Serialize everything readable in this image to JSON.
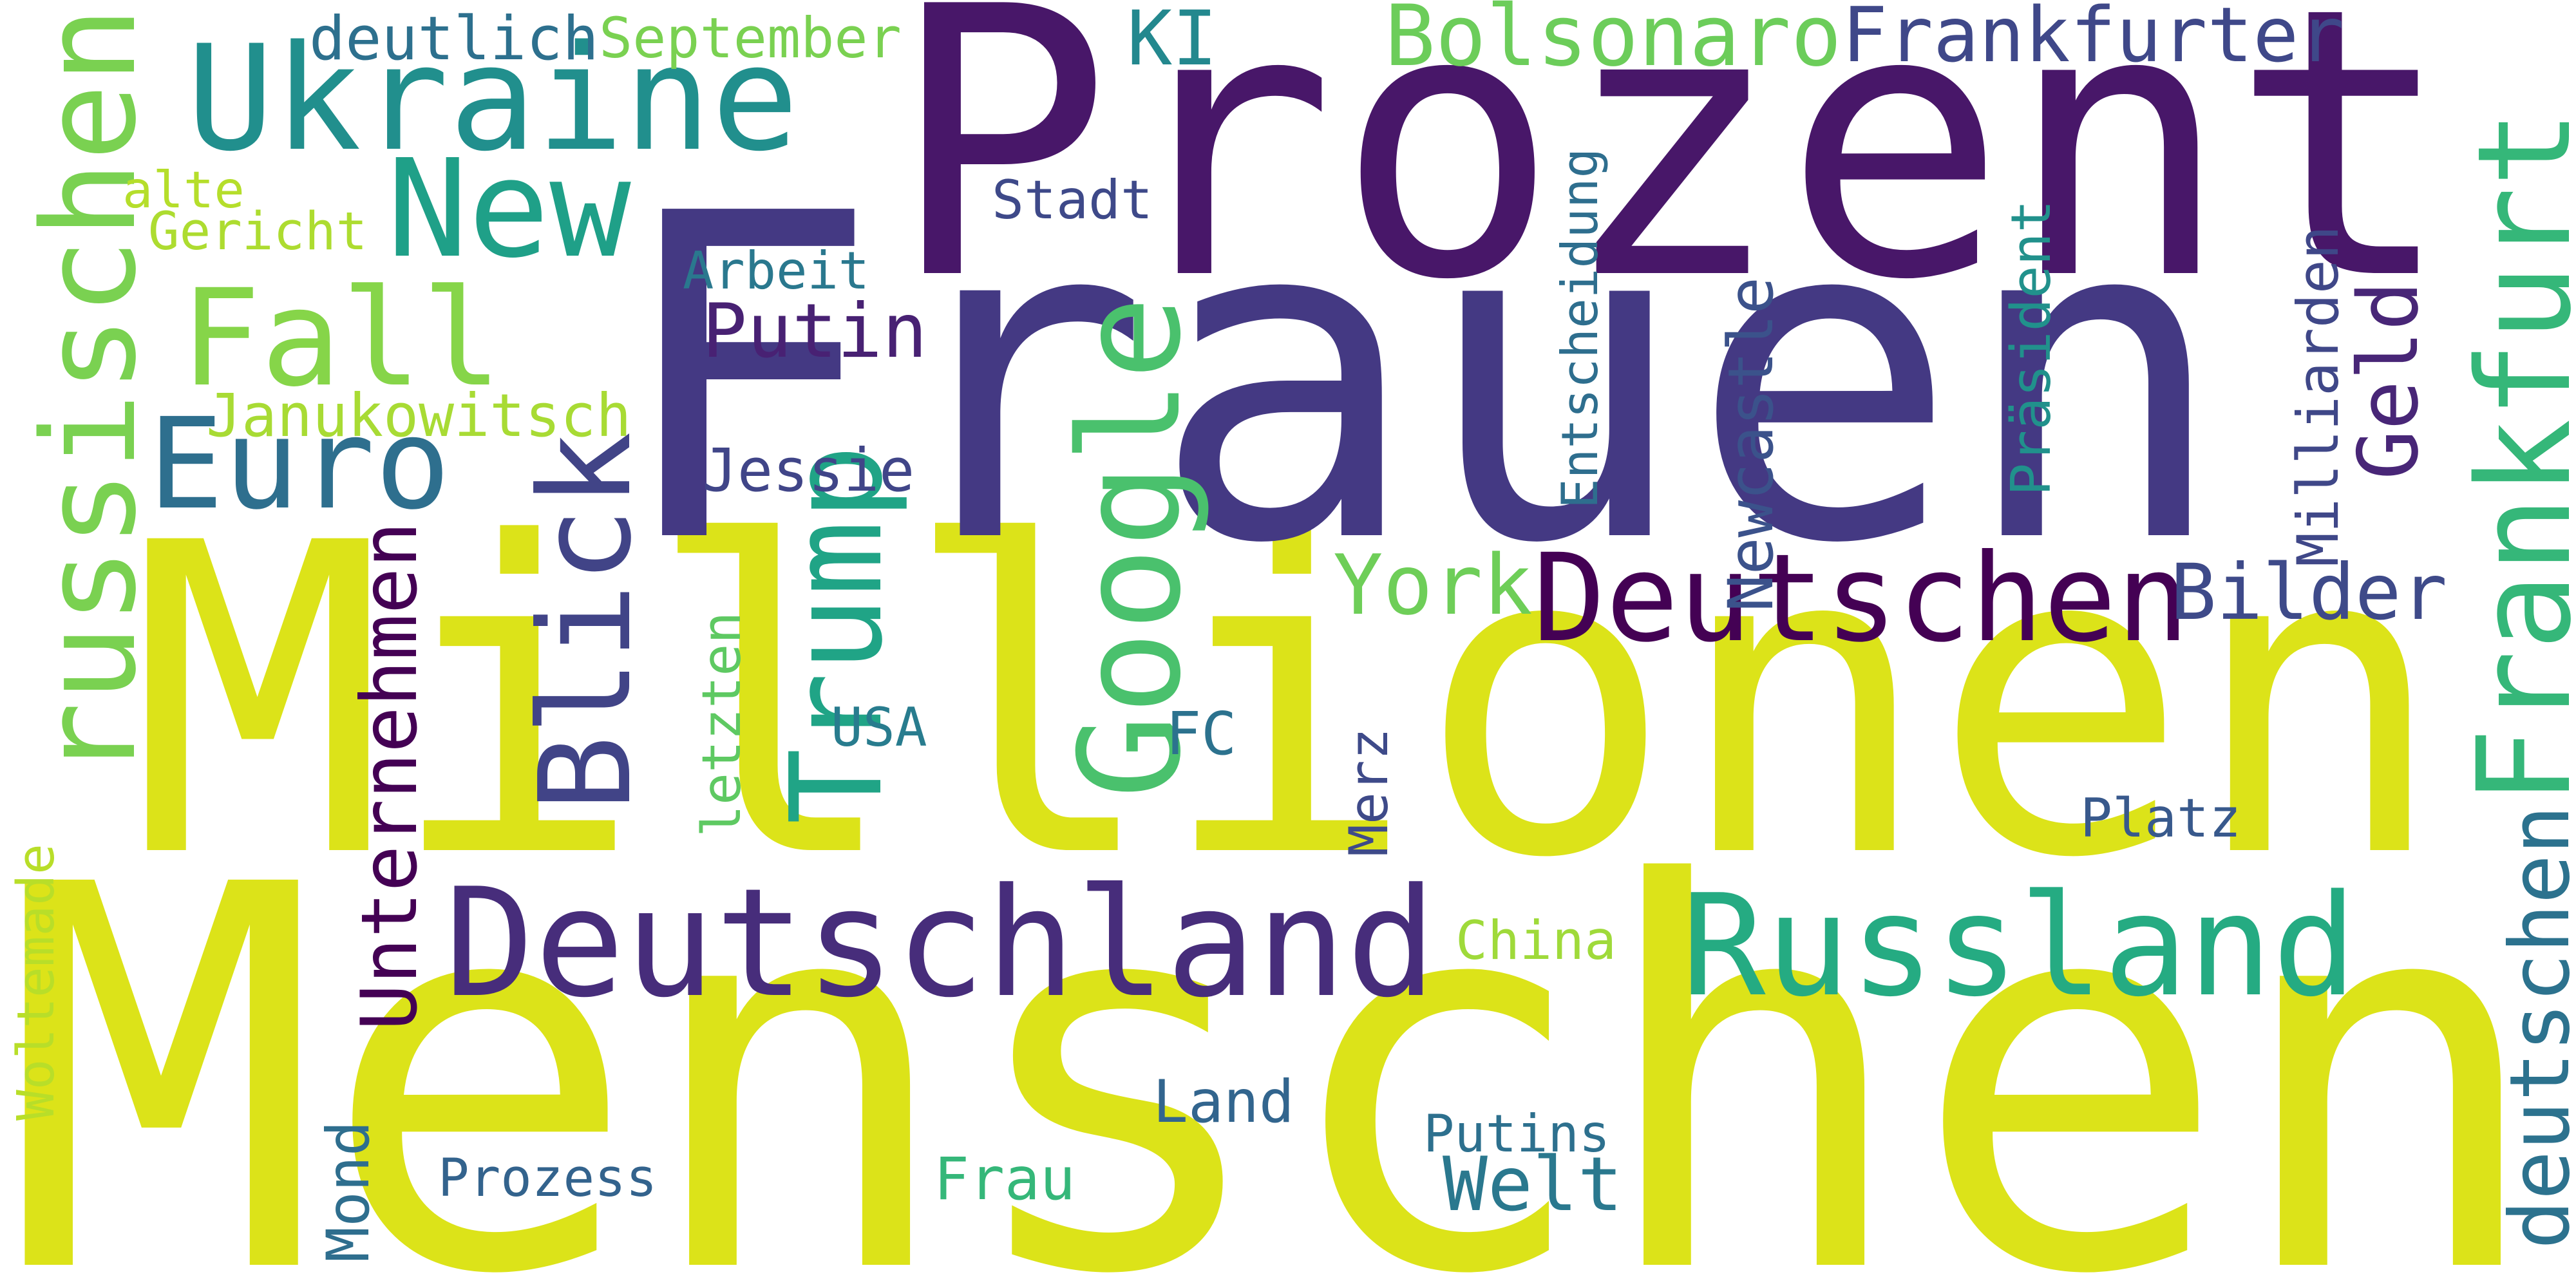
{
  "cloud": {
    "background": "#ffffff",
    "words": [
      {
        "text": "Menschen",
        "color": "#dce319"
      },
      {
        "text": "Millionen",
        "color": "#dce319"
      },
      {
        "text": "Frauen",
        "color": "#443983"
      },
      {
        "text": "Prozent",
        "color": "#481769"
      },
      {
        "text": "Deutschland",
        "color": "#472d7b"
      },
      {
        "text": "Russland",
        "color": "#25ab82"
      },
      {
        "text": "Ukraine",
        "color": "#218f8d"
      },
      {
        "text": "Frankfurt",
        "color": "#35b779"
      },
      {
        "text": "russischen",
        "color": "#7ad151"
      },
      {
        "text": "Deutschen",
        "color": "#440154"
      },
      {
        "text": "Google",
        "color": "#4ac16d"
      },
      {
        "text": "Fall",
        "color": "#86d549"
      },
      {
        "text": "Euro",
        "color": "#2e6f8e"
      },
      {
        "text": "New",
        "color": "#1fa088"
      },
      {
        "text": "Blick",
        "color": "#414487"
      },
      {
        "text": "Trump",
        "color": "#20a486"
      },
      {
        "text": "Bolsonaro",
        "color": "#6ccd5a"
      },
      {
        "text": "Frankfurter",
        "color": "#3f4889"
      },
      {
        "text": "Unternehmen",
        "color": "#440154"
      },
      {
        "text": "deutschen",
        "color": "#2c728e"
      },
      {
        "text": "Welt",
        "color": "#2a788e"
      },
      {
        "text": "Bilder",
        "color": "#3e4a89"
      },
      {
        "text": "York",
        "color": "#6ece58"
      },
      {
        "text": "Putin",
        "color": "#482173"
      },
      {
        "text": "Geld",
        "color": "#482677"
      },
      {
        "text": "Janukowitsch",
        "color": "#a8db34"
      },
      {
        "text": "KI",
        "color": "#23888e"
      },
      {
        "text": "Jessie",
        "color": "#404588"
      },
      {
        "text": "Entscheidung",
        "color": "#2e6e8e"
      },
      {
        "text": "Präsident",
        "color": "#21918c"
      },
      {
        "text": "Newcastle",
        "color": "#3b528b"
      },
      {
        "text": "Milliarden",
        "color": "#3f4788"
      },
      {
        "text": "letzten",
        "color": "#5ec962"
      },
      {
        "text": "USA",
        "color": "#287c8e"
      },
      {
        "text": "FC",
        "color": "#2c728e"
      },
      {
        "text": "Merz",
        "color": "#3e4a89"
      },
      {
        "text": "China",
        "color": "#9fda3a"
      },
      {
        "text": "Platz",
        "color": "#38598c"
      },
      {
        "text": "Land",
        "color": "#32658e"
      },
      {
        "text": "Putins",
        "color": "#2d708e"
      },
      {
        "text": "Prozess",
        "color": "#33638d"
      },
      {
        "text": "Frau",
        "color": "#35b779"
      },
      {
        "text": "Mond",
        "color": "#2e6e8e"
      },
      {
        "text": "Woltemade",
        "color": "#b8de29"
      },
      {
        "text": "deutlich",
        "color": "#2d708e"
      },
      {
        "text": "September",
        "color": "#7ad151"
      },
      {
        "text": "alte",
        "color": "#b5de2b"
      },
      {
        "text": "Gericht",
        "color": "#addc30"
      },
      {
        "text": "Stadt",
        "color": "#3e4989"
      },
      {
        "text": "Arbeit",
        "color": "#2a788e"
      }
    ]
  }
}
